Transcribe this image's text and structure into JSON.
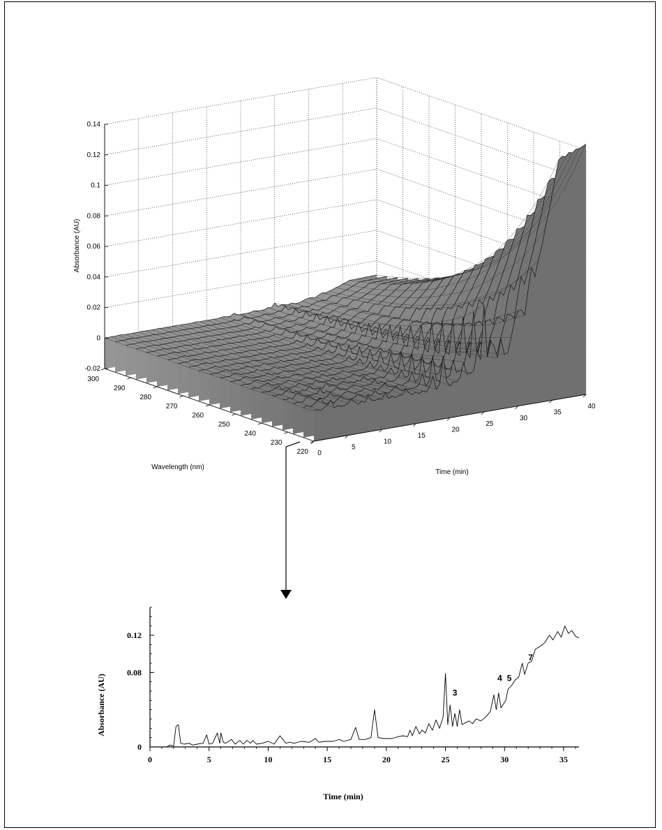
{
  "chart_data": [
    {
      "type": "surface",
      "xlabel": "Time  (min)",
      "ylabel": "Wavelength  (nm)",
      "zlabel": "Absorbance (AU)",
      "x_ticks": [
        0,
        5,
        10,
        15,
        20,
        25,
        30,
        35,
        40
      ],
      "y_ticks": [
        300,
        290,
        280,
        270,
        260,
        250,
        240,
        230,
        220
      ],
      "z_ticks": [
        -0.02,
        0,
        0.02,
        0.04,
        0.06,
        0.08,
        0.1,
        0.12,
        0.14
      ],
      "z_tick_labels": [
        "-0.02",
        "0",
        "0.02",
        "0.04",
        "0.06",
        "0.08",
        "0.1",
        "0.12",
        "0.14"
      ],
      "xlim": [
        0,
        40
      ],
      "ylim": [
        220,
        300
      ],
      "zlim": [
        -0.02,
        0.14
      ],
      "grid": true,
      "fill_color": "#9a9a9a"
    },
    {
      "type": "line",
      "xlabel": "Time (min)",
      "ylabel": "Absorbance (AU)",
      "x_ticks": [
        0,
        5,
        10,
        15,
        20,
        25,
        30,
        35
      ],
      "y_ticks": [
        0,
        0.08,
        0.12
      ],
      "y_tick_labels": [
        "0",
        "0.08",
        "0.12"
      ],
      "xlim": [
        0,
        36.3
      ],
      "ylim": [
        0,
        0.15
      ],
      "annotations": [
        {
          "text": "3",
          "x": 25.8,
          "y": 0.052
        },
        {
          "text": "4",
          "x": 29.6,
          "y": 0.068
        },
        {
          "text": "5",
          "x": 30.4,
          "y": 0.068
        },
        {
          "text": "7",
          "x": 32.2,
          "y": 0.09
        }
      ],
      "series": [
        {
          "x": [
            0,
            1.4,
            1.7,
            2.0,
            2.2,
            2.4,
            2.6,
            2.9,
            3.3,
            3.6,
            4.0,
            4.5,
            4.8,
            5.0,
            5.3,
            5.7,
            5.9,
            6.0,
            6.2,
            6.4,
            6.9,
            7.2,
            7.6,
            7.9,
            8.2,
            8.5,
            8.7,
            9.0,
            9.5,
            10.0,
            10.5,
            11.0,
            11.5,
            11.8,
            12.2,
            12.8,
            13.5,
            14.0,
            14.3,
            14.8,
            15.5,
            16.0,
            16.4,
            17.0,
            17.4,
            17.7,
            18.2,
            18.7,
            19.0,
            19.3,
            19.8,
            20.5,
            21.0,
            21.4,
            21.8,
            22.0,
            22.2,
            22.5,
            22.8,
            23.0,
            23.3,
            23.6,
            23.9,
            24.2,
            24.5,
            24.8,
            25.0,
            25.2,
            25.4,
            25.6,
            25.8,
            26.0,
            26.2,
            26.4,
            26.7,
            27.0,
            27.3,
            27.6,
            28.0,
            28.4,
            28.8,
            29.1,
            29.3,
            29.5,
            29.7,
            29.9,
            30.1,
            30.3,
            30.6,
            30.9,
            31.2,
            31.5,
            31.7,
            32.0,
            32.3,
            32.6,
            33.0,
            33.4,
            33.8,
            34.1,
            34.5,
            34.8,
            35.1,
            35.4,
            35.7,
            36.0,
            36.3
          ],
          "y": [
            0,
            0,
            0.002,
            0.001,
            0.022,
            0.024,
            0.004,
            0.003,
            0.004,
            0.002,
            0.003,
            0.004,
            0.013,
            0.003,
            0.004,
            0.015,
            0.004,
            0.015,
            0.005,
            0.004,
            0.008,
            0.003,
            0.007,
            0.003,
            0.007,
            0.004,
            0.007,
            0.003,
            0.004,
            0.006,
            0.003,
            0.012,
            0.004,
            0.005,
            0.004,
            0.006,
            0.005,
            0.009,
            0.005,
            0.006,
            0.006,
            0.008,
            0.006,
            0.008,
            0.021,
            0.008,
            0.008,
            0.01,
            0.04,
            0.01,
            0.009,
            0.009,
            0.011,
            0.012,
            0.011,
            0.018,
            0.012,
            0.022,
            0.014,
            0.018,
            0.015,
            0.025,
            0.018,
            0.029,
            0.02,
            0.032,
            0.079,
            0.024,
            0.045,
            0.022,
            0.036,
            0.022,
            0.04,
            0.024,
            0.026,
            0.028,
            0.025,
            0.03,
            0.028,
            0.032,
            0.038,
            0.056,
            0.04,
            0.058,
            0.042,
            0.046,
            0.05,
            0.062,
            0.066,
            0.072,
            0.075,
            0.09,
            0.078,
            0.09,
            0.092,
            0.105,
            0.108,
            0.112,
            0.12,
            0.115,
            0.124,
            0.118,
            0.13,
            0.122,
            0.125,
            0.119,
            0.117
          ]
        }
      ]
    }
  ]
}
